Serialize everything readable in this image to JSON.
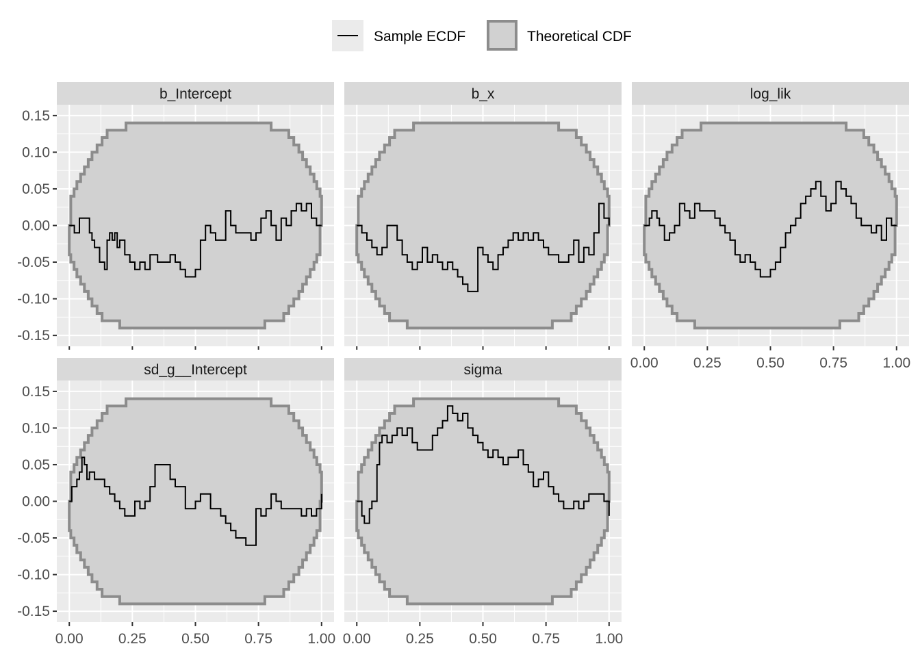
{
  "chart_data": {
    "type": "line",
    "legend": {
      "position": "top",
      "items": [
        {
          "label": "Sample ECDF",
          "kind": "line",
          "color": "#000000"
        },
        {
          "label": "Theoretical CDF",
          "kind": "band",
          "fill": "#d1d1d1",
          "border": "#8c8c8c"
        }
      ]
    },
    "colors": {
      "panel_bg": "#ebebeb",
      "strip_bg": "#d9d9d9",
      "grid": "#ffffff",
      "ecdf_line": "#000000",
      "band_fill": "#d1d1d1",
      "band_border": "#8c8c8c"
    },
    "xlim": [
      0,
      1
    ],
    "ylim": [
      -0.15,
      0.15
    ],
    "x_ticks": [
      0,
      0.25,
      0.5,
      0.75,
      1
    ],
    "x_tick_labels": [
      "0.00",
      "0.25",
      "0.50",
      "0.75",
      "1.00"
    ],
    "y_ticks": [
      -0.15,
      -0.1,
      -0.05,
      0,
      0.05,
      0.1,
      0.15
    ],
    "y_tick_labels": [
      "-0.15",
      "-0.10",
      "-0.05",
      "0.00",
      "0.05",
      "0.10",
      "0.15"
    ],
    "grid": true,
    "band": {
      "x": [
        0.0,
        0.006,
        0.019,
        0.03,
        0.045,
        0.06,
        0.075,
        0.09,
        0.11,
        0.13,
        0.15,
        0.175,
        0.2,
        0.225,
        0.25,
        0.3,
        0.375,
        0.5
      ],
      "upper": [
        0.0,
        0.04,
        0.05,
        0.06,
        0.07,
        0.08,
        0.09,
        0.1,
        0.11,
        0.12,
        0.13,
        0.13,
        0.13,
        0.14,
        0.14,
        0.14,
        0.14,
        0.14
      ],
      "lower": [
        0.0,
        -0.04,
        -0.05,
        -0.06,
        -0.07,
        -0.08,
        -0.09,
        -0.1,
        -0.11,
        -0.12,
        -0.13,
        -0.13,
        -0.13,
        -0.14,
        -0.14,
        -0.14,
        -0.14,
        -0.14
      ]
    },
    "panels": [
      {
        "title": "b_Intercept",
        "x": [
          0.0,
          0.02,
          0.04,
          0.06,
          0.08,
          0.09,
          0.1,
          0.12,
          0.14,
          0.15,
          0.16,
          0.17,
          0.18,
          0.19,
          0.2,
          0.22,
          0.24,
          0.26,
          0.28,
          0.3,
          0.32,
          0.35,
          0.38,
          0.4,
          0.42,
          0.44,
          0.46,
          0.48,
          0.5,
          0.52,
          0.54,
          0.56,
          0.58,
          0.6,
          0.62,
          0.64,
          0.66,
          0.7,
          0.72,
          0.74,
          0.76,
          0.78,
          0.8,
          0.82,
          0.84,
          0.86,
          0.88,
          0.9,
          0.92,
          0.94,
          0.96,
          0.98,
          1.0
        ],
        "y": [
          0.0,
          -0.01,
          0.01,
          0.01,
          -0.01,
          -0.02,
          -0.03,
          -0.05,
          -0.06,
          -0.02,
          -0.01,
          -0.02,
          -0.01,
          -0.03,
          -0.02,
          -0.04,
          -0.05,
          -0.06,
          -0.05,
          -0.06,
          -0.04,
          -0.05,
          -0.05,
          -0.04,
          -0.05,
          -0.06,
          -0.07,
          -0.07,
          -0.06,
          -0.02,
          0.0,
          -0.01,
          -0.02,
          -0.02,
          0.02,
          0.0,
          -0.01,
          -0.01,
          -0.02,
          -0.01,
          0.01,
          0.02,
          0.0,
          -0.02,
          0.01,
          0.0,
          0.02,
          0.03,
          0.02,
          0.03,
          0.01,
          0.0,
          0.0
        ]
      },
      {
        "title": "b_x",
        "x": [
          0.0,
          0.02,
          0.04,
          0.06,
          0.08,
          0.1,
          0.12,
          0.14,
          0.16,
          0.18,
          0.2,
          0.22,
          0.24,
          0.26,
          0.28,
          0.3,
          0.32,
          0.34,
          0.36,
          0.38,
          0.4,
          0.42,
          0.44,
          0.46,
          0.48,
          0.5,
          0.52,
          0.54,
          0.56,
          0.58,
          0.6,
          0.62,
          0.64,
          0.66,
          0.68,
          0.7,
          0.72,
          0.74,
          0.76,
          0.78,
          0.8,
          0.82,
          0.84,
          0.86,
          0.88,
          0.9,
          0.92,
          0.94,
          0.96,
          0.98,
          1.0
        ],
        "y": [
          0.0,
          -0.01,
          -0.02,
          -0.03,
          -0.04,
          -0.03,
          0.0,
          0.0,
          -0.02,
          -0.04,
          -0.05,
          -0.06,
          -0.05,
          -0.03,
          -0.05,
          -0.04,
          -0.05,
          -0.06,
          -0.05,
          -0.06,
          -0.07,
          -0.08,
          -0.09,
          -0.09,
          -0.03,
          -0.04,
          -0.05,
          -0.06,
          -0.04,
          -0.03,
          -0.02,
          -0.01,
          -0.02,
          -0.01,
          -0.02,
          -0.01,
          -0.02,
          -0.03,
          -0.04,
          -0.04,
          -0.05,
          -0.05,
          -0.04,
          -0.02,
          -0.05,
          -0.03,
          -0.04,
          -0.01,
          0.03,
          0.01,
          0.0
        ]
      },
      {
        "title": "log_lik",
        "x": [
          0.0,
          0.02,
          0.03,
          0.05,
          0.06,
          0.08,
          0.1,
          0.12,
          0.14,
          0.16,
          0.18,
          0.2,
          0.22,
          0.24,
          0.26,
          0.28,
          0.3,
          0.32,
          0.34,
          0.36,
          0.38,
          0.4,
          0.42,
          0.44,
          0.46,
          0.48,
          0.5,
          0.52,
          0.54,
          0.56,
          0.58,
          0.6,
          0.62,
          0.64,
          0.66,
          0.68,
          0.7,
          0.72,
          0.74,
          0.76,
          0.78,
          0.8,
          0.82,
          0.84,
          0.86,
          0.88,
          0.9,
          0.92,
          0.94,
          0.96,
          0.98,
          1.0
        ],
        "y": [
          0.0,
          0.01,
          0.02,
          0.01,
          0.0,
          -0.02,
          -0.01,
          0.0,
          0.03,
          0.02,
          0.01,
          0.03,
          0.02,
          0.02,
          0.02,
          0.01,
          0.0,
          -0.01,
          -0.02,
          -0.04,
          -0.05,
          -0.04,
          -0.05,
          -0.06,
          -0.07,
          -0.07,
          -0.06,
          -0.05,
          -0.03,
          -0.01,
          0.0,
          0.01,
          0.03,
          0.04,
          0.05,
          0.06,
          0.04,
          0.02,
          0.03,
          0.06,
          0.05,
          0.04,
          0.03,
          0.01,
          0.0,
          0.0,
          -0.01,
          0.0,
          -0.02,
          0.01,
          0.0,
          0.0
        ]
      },
      {
        "title": "sd_g__Intercept",
        "x": [
          0.0,
          0.01,
          0.02,
          0.03,
          0.04,
          0.05,
          0.06,
          0.07,
          0.08,
          0.1,
          0.12,
          0.14,
          0.16,
          0.18,
          0.2,
          0.22,
          0.24,
          0.26,
          0.28,
          0.3,
          0.32,
          0.34,
          0.36,
          0.38,
          0.4,
          0.42,
          0.44,
          0.46,
          0.48,
          0.5,
          0.52,
          0.54,
          0.56,
          0.58,
          0.6,
          0.62,
          0.64,
          0.66,
          0.68,
          0.7,
          0.72,
          0.74,
          0.76,
          0.78,
          0.8,
          0.82,
          0.84,
          0.86,
          0.88,
          0.9,
          0.92,
          0.94,
          0.96,
          0.98,
          1.0
        ],
        "y": [
          0.0,
          0.02,
          0.02,
          0.03,
          0.04,
          0.06,
          0.05,
          0.03,
          0.04,
          0.03,
          0.03,
          0.02,
          0.01,
          0.0,
          -0.01,
          -0.02,
          -0.02,
          0.0,
          -0.01,
          0.0,
          0.02,
          0.05,
          0.05,
          0.05,
          0.03,
          0.02,
          0.02,
          -0.01,
          -0.01,
          0.0,
          0.01,
          0.01,
          -0.01,
          -0.01,
          -0.02,
          -0.03,
          -0.04,
          -0.05,
          -0.05,
          -0.06,
          -0.06,
          -0.01,
          -0.02,
          -0.01,
          0.01,
          0.0,
          -0.01,
          -0.01,
          -0.01,
          -0.01,
          -0.02,
          -0.01,
          -0.02,
          -0.01,
          0.01
        ]
      },
      {
        "title": "sigma",
        "x": [
          0.0,
          0.02,
          0.03,
          0.05,
          0.06,
          0.08,
          0.09,
          0.1,
          0.12,
          0.14,
          0.16,
          0.18,
          0.2,
          0.22,
          0.24,
          0.26,
          0.28,
          0.3,
          0.32,
          0.34,
          0.36,
          0.38,
          0.4,
          0.42,
          0.44,
          0.46,
          0.48,
          0.5,
          0.52,
          0.54,
          0.56,
          0.58,
          0.6,
          0.62,
          0.64,
          0.66,
          0.68,
          0.7,
          0.72,
          0.74,
          0.76,
          0.78,
          0.8,
          0.82,
          0.84,
          0.86,
          0.88,
          0.9,
          0.92,
          0.94,
          0.96,
          0.98,
          1.0
        ],
        "y": [
          0.0,
          -0.02,
          -0.03,
          -0.01,
          0.0,
          0.05,
          0.08,
          0.09,
          0.08,
          0.09,
          0.1,
          0.09,
          0.1,
          0.08,
          0.07,
          0.07,
          0.07,
          0.09,
          0.1,
          0.11,
          0.13,
          0.12,
          0.11,
          0.12,
          0.1,
          0.09,
          0.08,
          0.07,
          0.06,
          0.07,
          0.06,
          0.05,
          0.06,
          0.06,
          0.07,
          0.05,
          0.04,
          0.02,
          0.03,
          0.04,
          0.02,
          0.01,
          0.0,
          -0.01,
          -0.01,
          0.0,
          -0.01,
          0.0,
          0.01,
          0.01,
          0.01,
          0.0,
          -0.02
        ]
      }
    ]
  }
}
